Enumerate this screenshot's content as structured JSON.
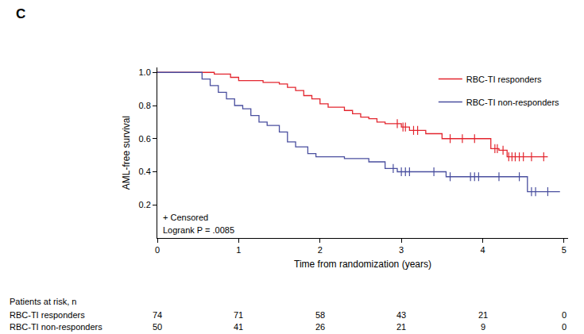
{
  "chart_data": {
    "type": "line",
    "title": "C",
    "x_label": "Time from randomization (years)",
    "y_label": "AML-free survival",
    "xlim": [
      0,
      5.05
    ],
    "xticks": [
      0,
      1,
      2,
      3,
      4,
      5
    ],
    "ylim": [
      0,
      1.03
    ],
    "yticks": [
      0.2,
      0.4,
      0.6,
      0.8,
      {
        "value": 1,
        "label": "1.0"
      }
    ],
    "grid": false,
    "legend": "top right",
    "line_style": "step",
    "marker": "line-ns",
    "annotations": [
      "+ Censored",
      "Logrank P = .0085"
    ],
    "series": [
      {
        "name": "RBC-TI responders",
        "color": "#e3262f",
        "x": [
          0,
          0.7,
          0.9,
          1.0,
          1.3,
          1.5,
          1.6,
          1.7,
          1.8,
          1.9,
          2.0,
          2.1,
          2.3,
          2.4,
          2.5,
          2.6,
          2.7,
          2.8,
          3.0,
          3.1,
          3.3,
          3.5,
          4.1,
          4.2,
          4.3,
          4.8
        ],
        "values": [
          1.0,
          0.99,
          0.97,
          0.95,
          0.94,
          0.93,
          0.91,
          0.89,
          0.86,
          0.84,
          0.81,
          0.79,
          0.77,
          0.75,
          0.73,
          0.72,
          0.7,
          0.69,
          0.67,
          0.65,
          0.63,
          0.6,
          0.54,
          0.53,
          0.49,
          0.49
        ],
        "censored": {
          "x": [
            2.95,
            3.02,
            3.05,
            3.15,
            3.2,
            3.6,
            3.75,
            3.9,
            4.15,
            4.18,
            4.25,
            4.32,
            4.36,
            4.4,
            4.45,
            4.5,
            4.6,
            4.75
          ],
          "values": [
            0.69,
            0.67,
            0.67,
            0.65,
            0.65,
            0.6,
            0.6,
            0.6,
            0.54,
            0.54,
            0.53,
            0.49,
            0.49,
            0.49,
            0.49,
            0.49,
            0.49,
            0.49
          ]
        }
      },
      {
        "name": "RBC-TI non-responders",
        "color": "#4a4f9f",
        "x": [
          0,
          0.55,
          0.65,
          0.75,
          0.85,
          0.95,
          1.05,
          1.15,
          1.25,
          1.35,
          1.5,
          1.6,
          1.7,
          1.85,
          1.95,
          2.3,
          2.6,
          2.8,
          2.95,
          3.55,
          4.55,
          4.95
        ],
        "values": [
          1.0,
          0.96,
          0.92,
          0.88,
          0.84,
          0.8,
          0.78,
          0.74,
          0.7,
          0.68,
          0.64,
          0.58,
          0.55,
          0.51,
          0.49,
          0.48,
          0.46,
          0.42,
          0.4,
          0.37,
          0.28,
          0.28
        ],
        "censored": {
          "x": [
            2.9,
            3.0,
            3.05,
            3.1,
            3.4,
            3.6,
            3.85,
            3.9,
            3.95,
            4.2,
            4.45,
            4.6,
            4.65,
            4.8
          ],
          "values": [
            0.42,
            0.4,
            0.4,
            0.4,
            0.4,
            0.37,
            0.37,
            0.37,
            0.37,
            0.37,
            0.37,
            0.28,
            0.28,
            0.28
          ]
        }
      }
    ],
    "at_risk": {
      "title": "Patients at risk, n",
      "x": [
        0,
        1,
        2,
        3,
        4,
        5
      ],
      "rows": [
        {
          "name": "RBC-TI responders",
          "values": [
            74,
            71,
            58,
            43,
            21,
            0
          ]
        },
        {
          "name": "RBC-TI non-responders",
          "values": [
            50,
            41,
            26,
            21,
            9,
            0
          ]
        }
      ]
    }
  }
}
